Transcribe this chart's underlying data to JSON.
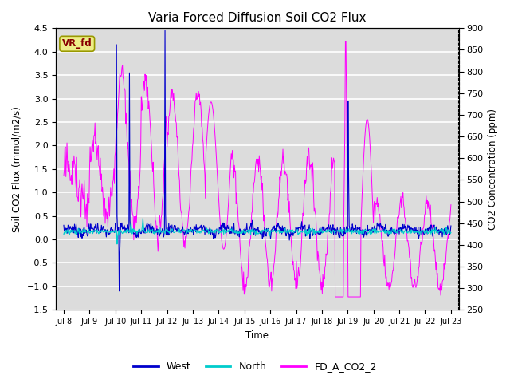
{
  "title": "Varia Forced Diffusion Soil CO2 Flux",
  "xlabel": "Time",
  "ylabel_left": "Soil CO2 Flux (mmol/m2/s)",
  "ylabel_right": "CO2 Concentration (ppm)",
  "ylim_left": [
    -1.5,
    4.5
  ],
  "ylim_right": [
    250,
    900
  ],
  "xtick_labels": [
    "Jul 8",
    "Jul 9",
    "Jul 10",
    "Jul 11",
    "Jul 12",
    "Jul 13",
    "Jul 14",
    "Jul 15",
    "Jul 16",
    "Jul 17",
    "Jul 18",
    "Jul 19",
    "Jul 20",
    "Jul 21",
    "Jul 22",
    "Jul 23"
  ],
  "color_west": "#0000CC",
  "color_north": "#00CCCC",
  "color_co2": "#FF00FF",
  "legend_labels": [
    "West",
    "North",
    "FD_A_CO2_2"
  ],
  "annotation_text": "VR_fd",
  "annotation_bg": "#EEEE88",
  "annotation_fg": "#880000",
  "background_color": "#DCDCDC",
  "grid_color": "#FFFFFF",
  "title_fontsize": 11
}
